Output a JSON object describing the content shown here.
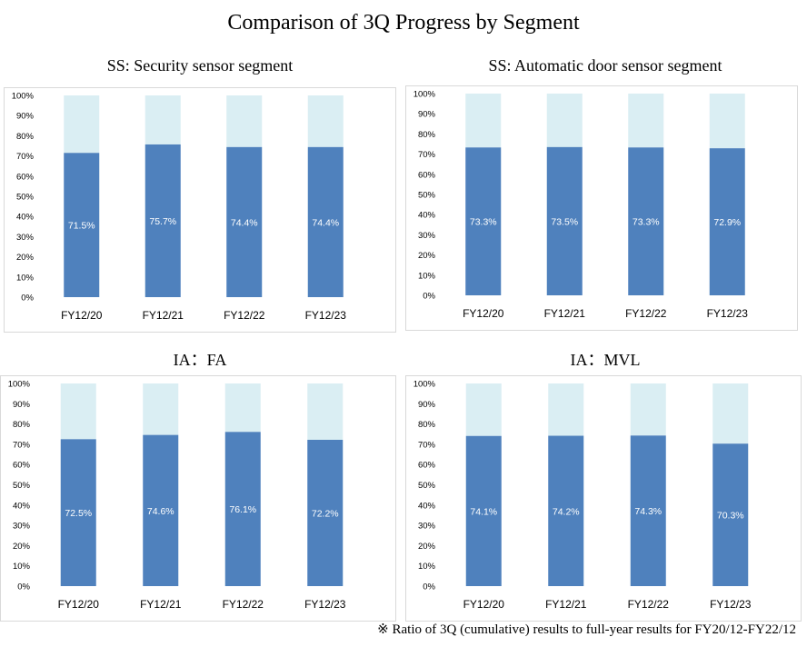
{
  "title": "Comparison of 3Q Progress by Segment",
  "footnote": "※ Ratio of 3Q (cumulative) results to full-year results for FY20/12-FY22/12",
  "colors": {
    "filled": "#4f81bd",
    "remainder": "#daeef3",
    "label": "#ffffff",
    "axis_text": "#000000",
    "grid_border": "#d9d9d9"
  },
  "chart_data": [
    {
      "type": "bar",
      "stacked": true,
      "title": "SS: Security sensor segment",
      "categories": [
        "FY12/20",
        "FY12/21",
        "FY12/22",
        "FY12/23"
      ],
      "values": [
        71.5,
        75.7,
        74.4,
        74.4
      ],
      "data_labels": [
        "71.5%",
        "75.7%",
        "74.4%",
        "74.4%"
      ],
      "ylim": [
        0,
        100
      ],
      "yticks": [
        "0%",
        "10%",
        "20%",
        "30%",
        "40%",
        "50%",
        "60%",
        "70%",
        "80%",
        "90%",
        "100%"
      ]
    },
    {
      "type": "bar",
      "stacked": true,
      "title": "SS: Automatic door sensor segment",
      "categories": [
        "FY12/20",
        "FY12/21",
        "FY12/22",
        "FY12/23"
      ],
      "values": [
        73.3,
        73.5,
        73.3,
        72.9
      ],
      "data_labels": [
        "73.3%",
        "73.5%",
        "73.3%",
        "72.9%"
      ],
      "ylim": [
        0,
        100
      ],
      "yticks": [
        "0%",
        "10%",
        "20%",
        "30%",
        "40%",
        "50%",
        "60%",
        "70%",
        "80%",
        "90%",
        "100%"
      ]
    },
    {
      "type": "bar",
      "stacked": true,
      "title": "IA：FA",
      "categories": [
        "FY12/20",
        "FY12/21",
        "FY12/22",
        "FY12/23"
      ],
      "values": [
        72.5,
        74.6,
        76.1,
        72.2
      ],
      "data_labels": [
        "72.5%",
        "74.6%",
        "76.1%",
        "72.2%"
      ],
      "ylim": [
        0,
        100
      ],
      "yticks": [
        "0%",
        "10%",
        "20%",
        "30%",
        "40%",
        "50%",
        "60%",
        "70%",
        "80%",
        "90%",
        "100%"
      ]
    },
    {
      "type": "bar",
      "stacked": true,
      "title": "IA：MVL",
      "categories": [
        "FY12/20",
        "FY12/21",
        "FY12/22",
        "FY12/23"
      ],
      "values": [
        74.1,
        74.2,
        74.3,
        70.3
      ],
      "data_labels": [
        "74.1%",
        "74.2%",
        "74.3%",
        "70.3%"
      ],
      "ylim": [
        0,
        100
      ],
      "yticks": [
        "0%",
        "10%",
        "20%",
        "30%",
        "40%",
        "50%",
        "60%",
        "70%",
        "80%",
        "90%",
        "100%"
      ]
    }
  ]
}
